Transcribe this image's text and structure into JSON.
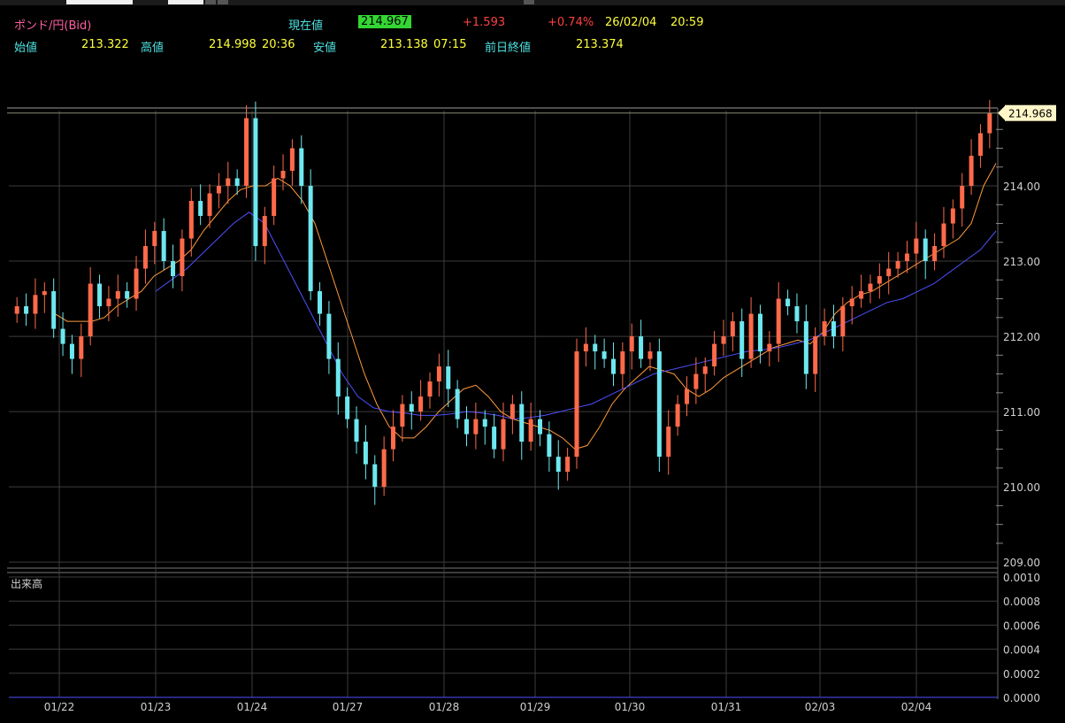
{
  "header": {
    "symbol": "ポンド/円(Bid)",
    "current_label": "現在値",
    "current_value": "214.967",
    "change": "+1.593",
    "change_pct": "+0.74%",
    "date": "26/02/04",
    "time": "20:59",
    "open_label": "始値",
    "open_value": "213.322",
    "high_label": "高値",
    "high_value": "214.998",
    "high_time": "20:36",
    "low_label": "安値",
    "low_value": "213.138",
    "low_time": "07:15",
    "prev_close_label": "前日終値",
    "prev_close_value": "213.374"
  },
  "colors": {
    "background": "#000000",
    "grid": "#3c3c3c",
    "candle_up": "#ff6a4a",
    "candle_down": "#6ee8f0",
    "ma_short": "#ff9a3c",
    "ma_long": "#4f4fff",
    "axis_text": "#d0d0d0",
    "price_tag_bg": "#fff6c8"
  },
  "chart_data": [
    {
      "type": "candlestick",
      "title": "ポンド/円(Bid)",
      "x_ticks": [
        "01/22",
        "01/23",
        "01/24",
        "01/27",
        "01/28",
        "01/29",
        "01/30",
        "01/31",
        "02/03",
        "02/04"
      ],
      "y_ticks": [
        "209.00",
        "210.00",
        "211.00",
        "212.00",
        "213.00",
        "214.00"
      ],
      "ylim": [
        208.99,
        215.0
      ],
      "last_price": "214.968",
      "grid": true,
      "legend": "none",
      "series": [
        {
          "role": "candles",
          "y": [
            212.4,
            212.3,
            212.55,
            212.6,
            212.1,
            211.9,
            211.7,
            212.0,
            212.7,
            212.4,
            212.5,
            212.6,
            212.5,
            212.9,
            213.2,
            213.4,
            213.0,
            212.8,
            213.3,
            213.8,
            213.6,
            213.9,
            214.0,
            214.1,
            214.0,
            214.9,
            213.2,
            213.6,
            214.1,
            214.2,
            214.5,
            214.0,
            212.6,
            212.3,
            211.7,
            211.2,
            210.9,
            210.6,
            210.3,
            210.0,
            210.5,
            210.8,
            211.1,
            211.0,
            211.2,
            211.4,
            211.6,
            211.3,
            210.9,
            210.7,
            210.9,
            210.8,
            210.5,
            210.9,
            211.1,
            210.6,
            210.9,
            210.7,
            210.4,
            210.2,
            210.4,
            211.8,
            211.9,
            211.8,
            211.7,
            211.5,
            211.8,
            212.0,
            211.7,
            211.8,
            210.4,
            210.8,
            211.1,
            211.3,
            211.5,
            211.6,
            211.9,
            212.0,
            212.2,
            211.7,
            212.3,
            211.8,
            211.9,
            212.5,
            212.4,
            212.2,
            211.5,
            212.0,
            212.2,
            212.0,
            212.4,
            212.5,
            212.6,
            212.7,
            212.8,
            212.9,
            213.0,
            213.1,
            213.3,
            213.0,
            213.2,
            213.5,
            213.7,
            214.0,
            214.4,
            214.7,
            214.97
          ]
        },
        {
          "role": "moving-average-short",
          "y": [
            212.3,
            212.2,
            212.2,
            212.2,
            212.25,
            212.4,
            212.5,
            212.6,
            212.8,
            212.9,
            213.0,
            213.15,
            213.4,
            213.6,
            213.8,
            213.95,
            214.0,
            214.0,
            214.1,
            214.0,
            213.8,
            213.5,
            213.0,
            212.5,
            212.0,
            211.5,
            211.1,
            210.8,
            210.65,
            210.65,
            210.8,
            211.0,
            211.15,
            211.3,
            211.35,
            211.2,
            211.0,
            210.9,
            210.85,
            210.8,
            210.75,
            210.65,
            210.5,
            210.55,
            210.8,
            211.1,
            211.3,
            211.45,
            211.6,
            211.55,
            211.5,
            211.3,
            211.2,
            211.3,
            211.45,
            211.55,
            211.65,
            211.75,
            211.85,
            211.9,
            211.95,
            211.9,
            212.05,
            212.3,
            212.45,
            212.55,
            212.6,
            212.7,
            212.8,
            212.9,
            213.0,
            213.1,
            213.2,
            213.3,
            213.5,
            214.0,
            214.3
          ]
        },
        {
          "role": "moving-average-long",
          "y": [
            212.6,
            212.75,
            212.9,
            213.1,
            213.3,
            213.5,
            213.65,
            213.5,
            213.1,
            212.7,
            212.3,
            211.9,
            211.5,
            211.2,
            211.05,
            211.0,
            210.98,
            210.95,
            210.95,
            210.97,
            211.0,
            210.98,
            210.95,
            210.9,
            210.92,
            210.95,
            211.0,
            211.05,
            211.1,
            211.2,
            211.3,
            211.4,
            211.5,
            211.55,
            211.6,
            211.65,
            211.7,
            211.75,
            211.8,
            211.82,
            211.85,
            211.9,
            211.95,
            212.05,
            212.15,
            212.25,
            212.35,
            212.45,
            212.5,
            212.6,
            212.7,
            212.85,
            213.0,
            213.15,
            213.4
          ]
        }
      ]
    },
    {
      "type": "bar",
      "title": "出来高",
      "y_ticks": [
        "0.0010",
        "0.0008",
        "0.0006",
        "0.0004",
        "0.0002",
        "0.0000"
      ],
      "ylim": [
        0,
        0.001
      ],
      "values": []
    }
  ]
}
